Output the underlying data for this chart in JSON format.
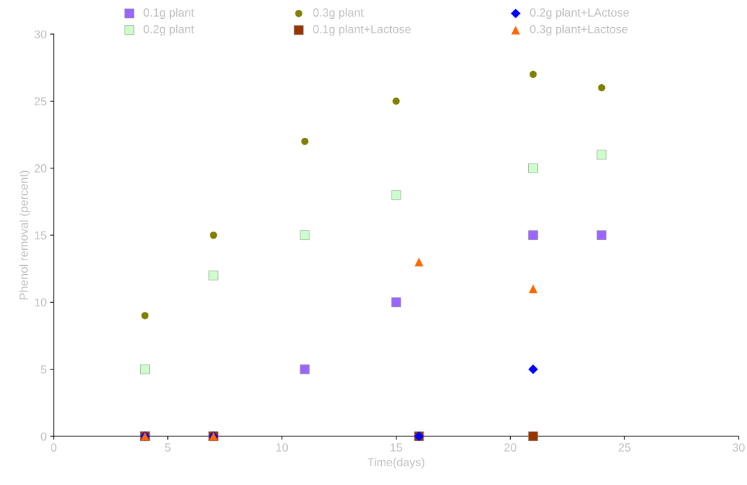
{
  "chart_data": {
    "type": "scatter",
    "xlabel": "Time(days)",
    "ylabel": "Phenol removal (percent)",
    "xlim": [
      0,
      30
    ],
    "xticks": [
      0,
      5,
      10,
      15,
      20,
      25,
      30
    ],
    "ylim": [
      0,
      30
    ],
    "yticks": [
      0,
      5,
      10,
      15,
      20,
      25,
      30
    ],
    "grid": false,
    "legend": "top",
    "series": [
      {
        "name": "0.1g plant",
        "color": "#9966ff",
        "marker": "square",
        "x": [
          4,
          7,
          11,
          15,
          21,
          24
        ],
        "values": [
          0,
          0,
          5,
          10,
          15,
          15
        ]
      },
      {
        "name": "0.2g plant",
        "color": "#ccffcc",
        "marker": "square",
        "x": [
          4,
          7,
          11,
          15,
          21,
          24
        ],
        "values": [
          5,
          12,
          15,
          18,
          20,
          21
        ]
      },
      {
        "name": "0.3g plant",
        "color": "#808000",
        "marker": "circle",
        "x": [
          4,
          7,
          11,
          15,
          21,
          24
        ],
        "values": [
          9,
          15,
          22,
          25,
          27,
          26
        ]
      },
      {
        "name": "0.1g plant+Lactose",
        "color": "#993300",
        "marker": "square",
        "x": [
          4,
          7,
          16,
          21
        ],
        "values": [
          0,
          0,
          0,
          0
        ]
      },
      {
        "name": "0.2g plant+LActose",
        "color": "#0000ff",
        "marker": "diamond",
        "x": [
          4,
          7,
          16,
          21
        ],
        "values": [
          0,
          0,
          0,
          5
        ]
      },
      {
        "name": "0.3g plant+Lactose",
        "color": "#ff6600",
        "marker": "triangle",
        "x": [
          4,
          7,
          16,
          21
        ],
        "values": [
          0,
          0,
          13,
          11
        ]
      }
    ]
  }
}
